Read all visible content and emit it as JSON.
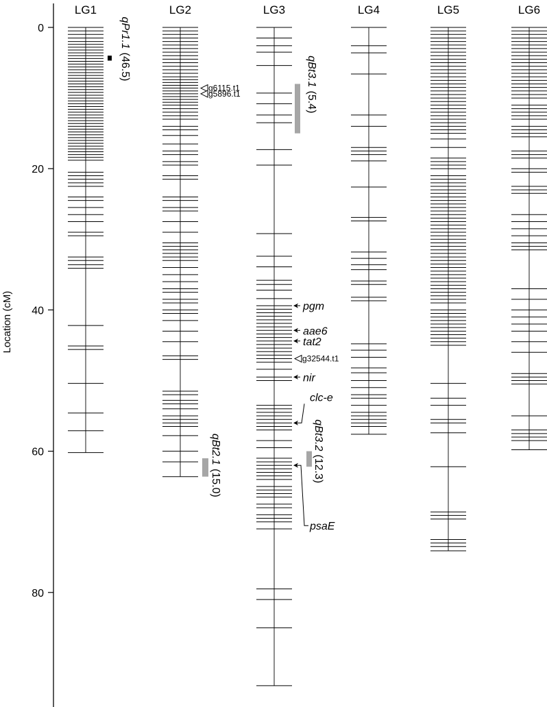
{
  "axis": {
    "title": "Location (cM)",
    "ticks": [
      0,
      20,
      40,
      60,
      80
    ],
    "tick_labels": [
      "0",
      "20",
      "40",
      "60",
      "80"
    ],
    "range": [
      0,
      96
    ]
  },
  "colors": {
    "line": "#000000",
    "qtl_gray": "#a6a6a6",
    "qtl_black": "#000000"
  },
  "linkage_groups": [
    {
      "name": "LG1",
      "length": 60.2,
      "markers": [
        0.0,
        0.5,
        1.0,
        1.5,
        2.0,
        2.4,
        2.8,
        3.2,
        3.6,
        4.0,
        4.4,
        4.8,
        5.2,
        5.6,
        6.0,
        6.4,
        6.8,
        7.2,
        7.6,
        8.0,
        8.4,
        8.8,
        9.2,
        9.6,
        10.0,
        10.4,
        10.8,
        11.2,
        11.6,
        12.0,
        12.4,
        12.8,
        13.2,
        13.6,
        14.0,
        14.4,
        14.8,
        15.2,
        15.6,
        16.0,
        16.4,
        16.8,
        17.2,
        17.6,
        18.0,
        18.4,
        18.8,
        20.5,
        21.0,
        21.5,
        22.0,
        22.5,
        24.0,
        24.5,
        25.5,
        26.5,
        27.5,
        29.0,
        29.5,
        32.5,
        33.0,
        33.6,
        34.1,
        42.2,
        45.1,
        45.6,
        50.4,
        54.6,
        57.1,
        60.2
      ]
    },
    {
      "name": "LG2",
      "length": 63.6,
      "markers": [
        0.0,
        0.5,
        1.0,
        1.5,
        2.0,
        2.5,
        3.0,
        3.5,
        4.0,
        4.5,
        5.0,
        5.5,
        6.0,
        6.5,
        7.0,
        7.4,
        7.8,
        8.2,
        8.6,
        9.0,
        9.4,
        9.8,
        10.2,
        10.6,
        11.0,
        11.5,
        12.0,
        12.5,
        13.0,
        14.0,
        14.5,
        15.3,
        16.5,
        17.5,
        18.0,
        19.0,
        19.5,
        21.0,
        21.5,
        24.0,
        24.5,
        25.5,
        26.0,
        27.5,
        29.0,
        30.5,
        31.0,
        31.5,
        32.0,
        32.5,
        33.0,
        34.0,
        35.0,
        36.0,
        37.0,
        37.5,
        38.5,
        39.0,
        40.0,
        40.5,
        41.5,
        43.0,
        44.5,
        46.5,
        47.0,
        51.5,
        52.0,
        52.8,
        53.3,
        54.0,
        55.0,
        55.5,
        56.0,
        56.5,
        57.8,
        60.0,
        61.5,
        63.6
      ]
    },
    {
      "name": "LG3",
      "length": 93.2,
      "markers": [
        0.0,
        1.5,
        2.6,
        3.5,
        5.4,
        9.3,
        10.8,
        12.4,
        13.5,
        17.3,
        19.5,
        29.2,
        32.4,
        33.9,
        35.8,
        36.4,
        37.2,
        38.4,
        39.4,
        39.9,
        40.4,
        40.9,
        41.4,
        41.9,
        42.4,
        42.9,
        43.4,
        43.9,
        44.4,
        44.9,
        45.4,
        45.9,
        46.4,
        46.9,
        47.4,
        48.4,
        49.5,
        50.0,
        53.5,
        54.0,
        54.5,
        55.0,
        55.5,
        56.0,
        56.5,
        57.0,
        58.5,
        59.5,
        61.0,
        61.5,
        62.0,
        62.5,
        63.0,
        63.5,
        64.0,
        65.0,
        65.5,
        66.0,
        66.5,
        67.5,
        68.0,
        69.0,
        69.5,
        70.0,
        71.0,
        79.5,
        81.0,
        85.0,
        93.2
      ]
    },
    {
      "name": "LG4",
      "length": 57.6,
      "markers": [
        0.0,
        2.6,
        3.6,
        6.6,
        12.4,
        14.0,
        17.0,
        17.5,
        18.0,
        18.9,
        22.6,
        26.9,
        27.4,
        31.8,
        32.7,
        33.6,
        34.3,
        35.9,
        36.4,
        38.2,
        38.7,
        44.8,
        45.7,
        46.7,
        48.2,
        48.9,
        50.0,
        51.0,
        52.0,
        52.5,
        53.5,
        54.5,
        55.0,
        55.5,
        56.0,
        56.5,
        57.6
      ]
    },
    {
      "name": "LG5",
      "length": 74.1,
      "markers": [
        0.0,
        0.5,
        1.0,
        1.5,
        2.0,
        2.5,
        3.0,
        3.5,
        4.0,
        4.5,
        5.0,
        5.5,
        6.0,
        6.5,
        7.0,
        7.5,
        8.0,
        8.5,
        9.0,
        9.5,
        10.0,
        10.5,
        11.0,
        11.5,
        12.0,
        12.5,
        13.0,
        13.5,
        14.0,
        14.5,
        15.0,
        15.8,
        17.0,
        18.5,
        19.0,
        19.5,
        20.0,
        21.0,
        21.5,
        22.0,
        22.5,
        23.0,
        23.5,
        24.0,
        24.5,
        25.0,
        25.5,
        26.0,
        26.5,
        27.0,
        27.5,
        28.0,
        28.5,
        29.0,
        29.5,
        30.0,
        30.5,
        31.0,
        31.5,
        32.0,
        32.5,
        33.0,
        33.5,
        34.0,
        34.5,
        35.0,
        35.5,
        36.0,
        36.5,
        37.0,
        37.5,
        38.0,
        38.5,
        39.0,
        40.0,
        40.5,
        41.0,
        41.5,
        42.0,
        42.5,
        43.0,
        43.5,
        44.0,
        44.5,
        45.0,
        50.4,
        52.5,
        53.5,
        55.5,
        56.0,
        57.4,
        62.2,
        68.6,
        69.1,
        69.6,
        72.5,
        73.0,
        73.5,
        74.1
      ]
    },
    {
      "name": "LG6",
      "length": 59.8,
      "markers": [
        0.0,
        0.5,
        1.0,
        1.5,
        2.0,
        2.5,
        3.0,
        3.5,
        4.0,
        4.5,
        5.0,
        5.5,
        6.0,
        6.5,
        7.0,
        7.5,
        8.0,
        8.5,
        9.0,
        9.5,
        10.0,
        11.0,
        11.5,
        12.0,
        12.5,
        13.0,
        14.0,
        14.5,
        15.0,
        15.5,
        17.5,
        18.0,
        18.5,
        20.0,
        20.5,
        22.5,
        23.0,
        23.5,
        26.5,
        27.5,
        28.5,
        29.5,
        30.5,
        31.0,
        31.5,
        37.0,
        38.5,
        40.0,
        41.0,
        42.0,
        43.0,
        44.5,
        46.0,
        49.0,
        49.5,
        50.0,
        50.5,
        55.0,
        57.0,
        57.5,
        58.0,
        58.5,
        59.8
      ]
    }
  ],
  "qtls": [
    {
      "name": "qPr1.1",
      "value": "(46.5)",
      "group": "LG1",
      "start": 4.0,
      "end": 4.7,
      "color": "#000000",
      "shape": "square"
    },
    {
      "name": "qBt2.1",
      "value": "(15.0)",
      "group": "LG2",
      "start": 61.0,
      "end": 63.6,
      "color": "#a6a6a6",
      "shape": "bar"
    },
    {
      "name": "qBt3.1",
      "value": "(5.4)",
      "group": "LG3",
      "start": 8.0,
      "end": 15.0,
      "color": "#a6a6a6",
      "shape": "bar"
    },
    {
      "name": "qBt3.2",
      "value": "(12.3)",
      "group": "LG3",
      "start": 60.0,
      "end": 62.2,
      "color": "#a6a6a6",
      "shape": "bar"
    }
  ],
  "gene_markers": [
    {
      "label": "pgm",
      "group": "LG3",
      "position": 39.4
    },
    {
      "label": "aae6",
      "group": "LG3",
      "position": 42.9
    },
    {
      "label": "tat2",
      "group": "LG3",
      "position": 44.4
    },
    {
      "label": "nir",
      "group": "LG3",
      "position": 49.5
    },
    {
      "label": "clc-e",
      "group": "LG3",
      "position": 56.0
    },
    {
      "label": "psaE",
      "group": "LG3",
      "position": 62.0
    }
  ],
  "snp_markers": [
    {
      "label": "g6115.t1",
      "group": "LG2",
      "position": 8.6
    },
    {
      "label": "g5896.t1",
      "group": "LG2",
      "position": 9.4
    },
    {
      "label": "g32544.t1",
      "group": "LG3",
      "position": 46.9
    }
  ]
}
